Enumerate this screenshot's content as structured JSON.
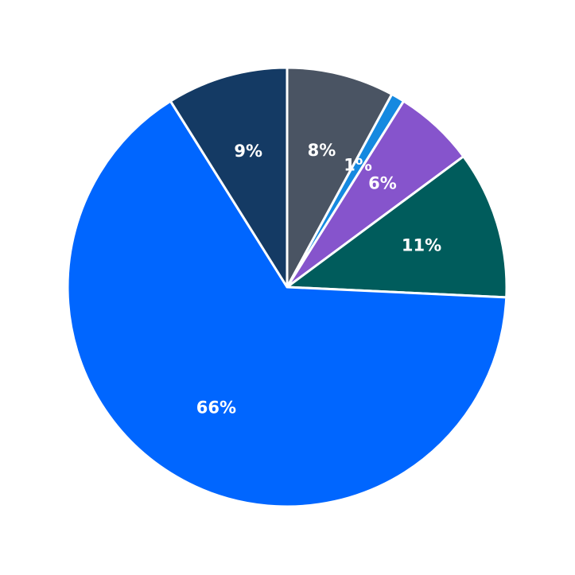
{
  "chart_data": {
    "type": "pie",
    "categories": [
      null,
      null,
      null,
      null,
      null,
      null
    ],
    "values": [
      8,
      1,
      6,
      11,
      66,
      9
    ],
    "value_labels": [
      "8%",
      "1%",
      "6%",
      "11%",
      "66%",
      "9%"
    ],
    "colors": [
      "#4a5463",
      "#1589e0",
      "#8654cc",
      "#005c5c",
      "#0066ff",
      "#143a64"
    ]
  }
}
